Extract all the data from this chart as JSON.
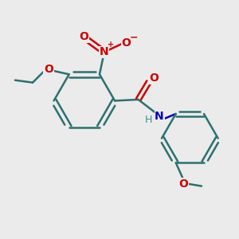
{
  "bg_color": "#ebebeb",
  "bond_color": "#2d7070",
  "bond_width": 1.8,
  "atom_colors": {
    "N_no2": "#cc0000",
    "N_amide": "#0000bb",
    "O": "#cc0000",
    "H": "#3a9090"
  },
  "figsize": [
    3.0,
    3.0
  ],
  "dpi": 100,
  "xlim": [
    0,
    10
  ],
  "ylim": [
    0,
    10
  ]
}
